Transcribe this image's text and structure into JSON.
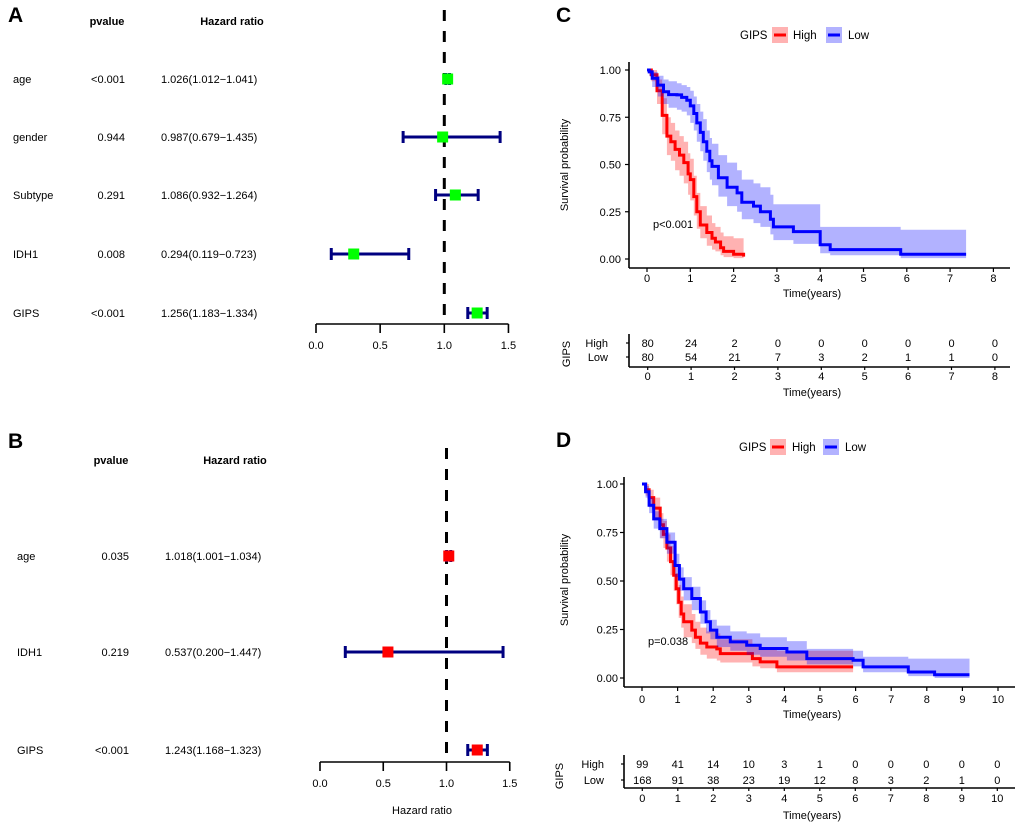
{
  "figure": {
    "panel_labels": [
      "A",
      "B",
      "C",
      "D"
    ]
  },
  "chart_data": [
    {
      "panel": "A",
      "type": "scatter",
      "subtype": "forest",
      "title": "",
      "column_headers": {
        "pvalue": "pvalue",
        "hazard_ratio": "Hazard ratio"
      },
      "rows": [
        {
          "variable": "age",
          "pvalue": "<0.001",
          "hr_text": "1.026(1.012−1.041)",
          "hr": 1.026,
          "lower": 1.012,
          "upper": 1.041
        },
        {
          "variable": "gender",
          "pvalue": "0.944",
          "hr_text": "0.987(0.679−1.435)",
          "hr": 0.987,
          "lower": 0.679,
          "upper": 1.435
        },
        {
          "variable": "Subtype",
          "pvalue": "0.291",
          "hr_text": "1.086(0.932−1.264)",
          "hr": 1.086,
          "lower": 0.932,
          "upper": 1.264
        },
        {
          "variable": "IDH1",
          "pvalue": "0.008",
          "hr_text": "0.294(0.119−0.723)",
          "hr": 0.294,
          "lower": 0.119,
          "upper": 0.723
        },
        {
          "variable": "GIPS",
          "pvalue": "<0.001",
          "hr_text": "1.256(1.183−1.334)",
          "hr": 1.256,
          "lower": 1.183,
          "upper": 1.334
        }
      ],
      "xlim": [
        0,
        1.5
      ],
      "xticks": [
        0,
        0.5,
        1,
        1.5
      ],
      "xtick_labels": [
        "0.0",
        "0.5",
        "1.0",
        "1.5"
      ],
      "reference_line": 1,
      "xlabel": "",
      "marker_color": "#00ff00",
      "ci_color": "#000080",
      "grid": false
    },
    {
      "panel": "B",
      "type": "scatter",
      "subtype": "forest",
      "title": "",
      "column_headers": {
        "pvalue": "pvalue",
        "hazard_ratio": "Hazard ratio"
      },
      "rows": [
        {
          "variable": "age",
          "pvalue": "0.035",
          "hr_text": "1.018(1.001−1.034)",
          "hr": 1.018,
          "lower": 1.001,
          "upper": 1.034
        },
        {
          "variable": "IDH1",
          "pvalue": "0.219",
          "hr_text": "0.537(0.200−1.447)",
          "hr": 0.537,
          "lower": 0.2,
          "upper": 1.447
        },
        {
          "variable": "GIPS",
          "pvalue": "<0.001",
          "hr_text": "1.243(1.168−1.323)",
          "hr": 1.243,
          "lower": 1.168,
          "upper": 1.323
        }
      ],
      "xlim": [
        0,
        1.5
      ],
      "xticks": [
        0,
        0.5,
        1,
        1.5
      ],
      "xtick_labels": [
        "0.0",
        "0.5",
        "1.0",
        "1.5"
      ],
      "reference_line": 1,
      "xlabel": "Hazard ratio",
      "marker_color": "#ff0000",
      "ci_color": "#000080",
      "grid": false
    },
    {
      "panel": "C",
      "type": "line",
      "subtype": "kaplan-meier",
      "title": "",
      "legend_title": "GIPS",
      "legend_placement": "top",
      "xlabel": "Time(years)",
      "ylabel": "Survival probability",
      "xlim": [
        0,
        8
      ],
      "ylim": [
        0,
        1
      ],
      "xticks": [
        0,
        1,
        2,
        3,
        4,
        5,
        6,
        7,
        8
      ],
      "xtick_labels": [
        "0",
        "1",
        "2",
        "3",
        "4",
        "5",
        "6",
        "7",
        "8"
      ],
      "yticks": [
        0,
        0.25,
        0.5,
        0.75,
        1
      ],
      "ytick_labels": [
        "0.00",
        "0.25",
        "0.50",
        "0.75",
        "1.00"
      ],
      "annotation": "p<0.001",
      "grid": false,
      "point_format": [
        "time",
        "survival",
        "ci_lower",
        "ci_upper"
      ],
      "series": [
        {
          "name": "High",
          "color": "#ff0000",
          "points": [
            [
              0,
              1.0,
              1.0,
              1.0
            ],
            [
              0.1,
              0.975,
              0.94,
              1.0
            ],
            [
              0.23,
              0.89,
              0.82,
              0.95
            ],
            [
              0.35,
              0.76,
              0.66,
              0.85
            ],
            [
              0.46,
              0.65,
              0.55,
              0.75
            ],
            [
              0.55,
              0.62,
              0.52,
              0.72
            ],
            [
              0.65,
              0.58,
              0.47,
              0.68
            ],
            [
              0.75,
              0.55,
              0.44,
              0.65
            ],
            [
              0.85,
              0.51,
              0.4,
              0.62
            ],
            [
              0.95,
              0.45,
              0.34,
              0.56
            ],
            [
              1.0,
              0.42,
              0.31,
              0.53
            ],
            [
              1.08,
              0.33,
              0.23,
              0.44
            ],
            [
              1.15,
              0.25,
              0.16,
              0.35
            ],
            [
              1.23,
              0.18,
              0.11,
              0.28
            ],
            [
              1.38,
              0.14,
              0.07,
              0.23
            ],
            [
              1.5,
              0.11,
              0.05,
              0.19
            ],
            [
              1.58,
              0.09,
              0.04,
              0.17
            ],
            [
              1.7,
              0.06,
              0.02,
              0.14
            ],
            [
              1.77,
              0.04,
              0.01,
              0.12
            ],
            [
              2.0,
              0.025,
              0.005,
              0.11
            ],
            [
              2.23,
              0.0125,
              0.0,
              0.11
            ]
          ]
        },
        {
          "name": "Low",
          "color": "#0000ff",
          "points": [
            [
              0,
              1.0,
              1.0,
              1.0
            ],
            [
              0.05,
              0.99,
              0.97,
              1.0
            ],
            [
              0.12,
              0.956,
              0.91,
              0.99
            ],
            [
              0.25,
              0.92,
              0.86,
              0.97
            ],
            [
              0.38,
              0.885,
              0.82,
              0.95
            ],
            [
              0.5,
              0.87,
              0.8,
              0.94
            ],
            [
              0.69,
              0.868,
              0.79,
              0.93
            ],
            [
              0.8,
              0.855,
              0.78,
              0.92
            ],
            [
              0.92,
              0.84,
              0.76,
              0.91
            ],
            [
              1.0,
              0.81,
              0.72,
              0.89
            ],
            [
              1.08,
              0.77,
              0.68,
              0.86
            ],
            [
              1.15,
              0.72,
              0.62,
              0.82
            ],
            [
              1.23,
              0.67,
              0.57,
              0.78
            ],
            [
              1.3,
              0.62,
              0.52,
              0.74
            ],
            [
              1.38,
              0.57,
              0.46,
              0.68
            ],
            [
              1.45,
              0.52,
              0.42,
              0.64
            ],
            [
              1.5,
              0.49,
              0.39,
              0.61
            ],
            [
              1.65,
              0.43,
              0.33,
              0.55
            ],
            [
              1.85,
              0.38,
              0.28,
              0.51
            ],
            [
              2.08,
              0.35,
              0.25,
              0.47
            ],
            [
              2.19,
              0.3,
              0.21,
              0.42
            ],
            [
              2.46,
              0.28,
              0.19,
              0.4
            ],
            [
              2.62,
              0.25,
              0.17,
              0.38
            ],
            [
              2.85,
              0.21,
              0.13,
              0.34
            ],
            [
              2.92,
              0.17,
              0.1,
              0.29
            ],
            [
              3.38,
              0.145,
              0.08,
              0.29
            ],
            [
              3.96,
              0.145,
              0.08,
              0.29
            ],
            [
              4.0,
              0.075,
              0.03,
              0.17
            ],
            [
              4.23,
              0.05,
              0.02,
              0.17
            ],
            [
              5.85,
              0.05,
              0.02,
              0.17
            ],
            [
              5.86,
              0.025,
              0.005,
              0.155
            ],
            [
              7.37,
              0.025,
              0.005,
              0.155
            ]
          ]
        }
      ],
      "risk_table": {
        "title": "GIPS",
        "xlabel": "Time(years)",
        "times": [
          0,
          1,
          2,
          3,
          4,
          5,
          6,
          7,
          8
        ],
        "rows": [
          {
            "name": "High",
            "color": "#ff0000",
            "values": [
              80,
              24,
              2,
              0,
              0,
              0,
              0,
              0,
              0
            ]
          },
          {
            "name": "Low",
            "color": "#0000ff",
            "values": [
              80,
              54,
              21,
              7,
              3,
              2,
              1,
              1,
              0
            ]
          }
        ]
      }
    },
    {
      "panel": "D",
      "type": "line",
      "subtype": "kaplan-meier",
      "title": "",
      "legend_title": "GIPS",
      "legend_placement": "top",
      "xlabel": "Time(years)",
      "ylabel": "Survival probability",
      "xlim": [
        0,
        10
      ],
      "ylim": [
        0,
        1
      ],
      "xticks": [
        0,
        1,
        2,
        3,
        4,
        5,
        6,
        7,
        8,
        9,
        10
      ],
      "xtick_labels": [
        "0",
        "1",
        "2",
        "3",
        "4",
        "5",
        "6",
        "7",
        "8",
        "9",
        "10"
      ],
      "yticks": [
        0,
        0.25,
        0.5,
        0.75,
        1
      ],
      "ytick_labels": [
        "0.00",
        "0.25",
        "0.50",
        "0.75",
        "1.00"
      ],
      "annotation": "p=0.038",
      "grid": false,
      "point_format": [
        "time",
        "survival",
        "ci_lower",
        "ci_upper"
      ],
      "series": [
        {
          "name": "High",
          "color": "#ff0000",
          "points": [
            [
              0,
              1.0,
              1.0,
              1.0
            ],
            [
              0.1,
              0.97,
              0.94,
              1.0
            ],
            [
              0.2,
              0.93,
              0.88,
              0.97
            ],
            [
              0.33,
              0.876,
              0.82,
              0.93
            ],
            [
              0.51,
              0.79,
              0.72,
              0.85
            ],
            [
              0.6,
              0.74,
              0.67,
              0.81
            ],
            [
              0.7,
              0.67,
              0.6,
              0.74
            ],
            [
              0.8,
              0.6,
              0.53,
              0.68
            ],
            [
              0.89,
              0.53,
              0.45,
              0.61
            ],
            [
              0.96,
              0.46,
              0.38,
              0.54
            ],
            [
              1.03,
              0.39,
              0.31,
              0.48
            ],
            [
              1.1,
              0.33,
              0.26,
              0.42
            ],
            [
              1.17,
              0.29,
              0.21,
              0.38
            ],
            [
              1.4,
              0.247,
              0.18,
              0.33
            ],
            [
              1.5,
              0.21,
              0.15,
              0.29
            ],
            [
              1.64,
              0.18,
              0.12,
              0.26
            ],
            [
              1.82,
              0.16,
              0.1,
              0.24
            ],
            [
              2.1,
              0.15,
              0.09,
              0.23
            ],
            [
              2.2,
              0.126,
              0.08,
              0.2
            ],
            [
              2.94,
              0.126,
              0.08,
              0.2
            ],
            [
              3.1,
              0.1,
              0.06,
              0.17
            ],
            [
              3.32,
              0.083,
              0.05,
              0.15
            ],
            [
              3.79,
              0.057,
              0.03,
              0.14
            ],
            [
              5.93,
              0.057,
              0.03,
              0.14
            ]
          ]
        },
        {
          "name": "Low",
          "color": "#0000ff",
          "points": [
            [
              0,
              1.0,
              1.0,
              1.0
            ],
            [
              0.1,
              0.96,
              0.93,
              0.99
            ],
            [
              0.2,
              0.89,
              0.85,
              0.93
            ],
            [
              0.33,
              0.82,
              0.77,
              0.86
            ],
            [
              0.5,
              0.77,
              0.72,
              0.82
            ],
            [
              0.7,
              0.7,
              0.64,
              0.75
            ],
            [
              0.93,
              0.58,
              0.52,
              0.64
            ],
            [
              1.05,
              0.51,
              0.45,
              0.57
            ],
            [
              1.17,
              0.46,
              0.4,
              0.52
            ],
            [
              1.4,
              0.41,
              0.35,
              0.47
            ],
            [
              1.64,
              0.34,
              0.28,
              0.4
            ],
            [
              1.8,
              0.29,
              0.23,
              0.35
            ],
            [
              1.92,
              0.247,
              0.2,
              0.3
            ],
            [
              2.1,
              0.21,
              0.16,
              0.27
            ],
            [
              2.48,
              0.186,
              0.14,
              0.24
            ],
            [
              2.94,
              0.169,
              0.12,
              0.23
            ],
            [
              3.32,
              0.152,
              0.11,
              0.21
            ],
            [
              4.07,
              0.134,
              0.09,
              0.19
            ],
            [
              4.63,
              0.1,
              0.07,
              0.15
            ],
            [
              5.93,
              0.091,
              0.06,
              0.14
            ],
            [
              6.21,
              0.057,
              0.03,
              0.11
            ],
            [
              7.43,
              0.057,
              0.03,
              0.11
            ],
            [
              7.48,
              0.031,
              0.01,
              0.1
            ],
            [
              8.22,
              0.017,
              0.0,
              0.1
            ],
            [
              9.2,
              0.017,
              0.0,
              0.1
            ]
          ]
        }
      ],
      "risk_table": {
        "title": "GIPS",
        "xlabel": "Time(years)",
        "times": [
          0,
          1,
          2,
          3,
          4,
          5,
          6,
          7,
          8,
          9,
          10
        ],
        "rows": [
          {
            "name": "High",
            "color": "#ff0000",
            "values": [
              99,
              41,
              14,
              10,
              3,
              1,
              0,
              0,
              0,
              0,
              0
            ]
          },
          {
            "name": "Low",
            "color": "#0000ff",
            "values": [
              168,
              91,
              38,
              23,
              19,
              12,
              8,
              3,
              2,
              1,
              0
            ]
          }
        ]
      }
    }
  ]
}
